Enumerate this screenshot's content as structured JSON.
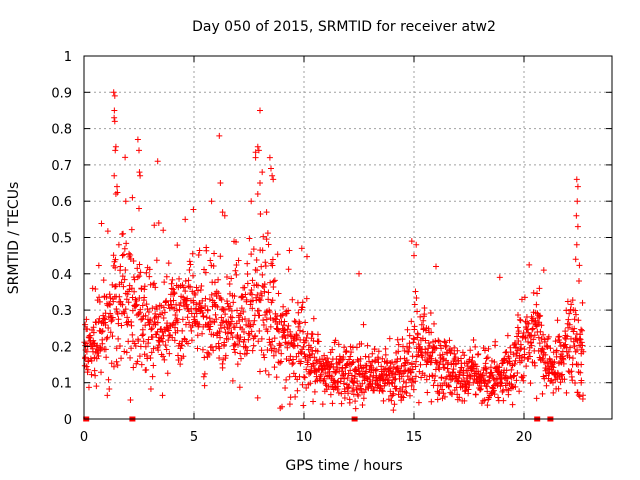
{
  "chart_data": {
    "type": "scatter",
    "title": "Day 050 of 2015, SRMTID for receiver atw2",
    "xlabel": "GPS time / hours",
    "ylabel": "SRMTID / TECUs",
    "xlim": [
      0,
      24
    ],
    "ylim": [
      0,
      1
    ],
    "xticks": [
      0,
      5,
      10,
      15,
      20
    ],
    "xtick_labels": [
      "0",
      "5",
      "10",
      "15",
      "20"
    ],
    "yticks": [
      0,
      0.1,
      0.2,
      0.3,
      0.4,
      0.5,
      0.6,
      0.7,
      0.8,
      0.9,
      1
    ],
    "ytick_labels": [
      "0",
      "0.1",
      "0.2",
      "0.3",
      "0.4",
      "0.5",
      "0.6",
      "0.7",
      "0.8",
      "0.9",
      "1"
    ],
    "grid": true,
    "marker": "+",
    "color": "#ff0000",
    "profile": {
      "x": [
        0.0,
        0.5,
        1.0,
        1.5,
        2.0,
        2.5,
        3.0,
        3.5,
        4.0,
        4.5,
        5.0,
        5.5,
        6.0,
        6.5,
        7.0,
        7.5,
        8.0,
        8.5,
        9.0,
        9.5,
        10.0,
        10.5,
        11.0,
        11.5,
        12.0,
        12.5,
        13.0,
        13.5,
        14.0,
        14.5,
        15.0,
        15.5,
        16.0,
        16.5,
        17.0,
        17.5,
        18.0,
        18.5,
        19.0,
        19.5,
        20.0,
        20.5,
        21.0,
        21.5,
        22.0,
        22.5
      ],
      "median": [
        0.22,
        0.2,
        0.25,
        0.3,
        0.33,
        0.27,
        0.24,
        0.25,
        0.27,
        0.28,
        0.29,
        0.27,
        0.26,
        0.25,
        0.24,
        0.26,
        0.3,
        0.3,
        0.22,
        0.2,
        0.19,
        0.14,
        0.12,
        0.12,
        0.12,
        0.13,
        0.12,
        0.12,
        0.11,
        0.12,
        0.17,
        0.19,
        0.15,
        0.14,
        0.13,
        0.12,
        0.11,
        0.11,
        0.12,
        0.13,
        0.2,
        0.24,
        0.15,
        0.15,
        0.2,
        0.2
      ],
      "spread": [
        0.06,
        0.07,
        0.1,
        0.14,
        0.13,
        0.1,
        0.1,
        0.09,
        0.09,
        0.1,
        0.09,
        0.09,
        0.09,
        0.08,
        0.08,
        0.12,
        0.15,
        0.14,
        0.09,
        0.09,
        0.08,
        0.06,
        0.05,
        0.05,
        0.05,
        0.06,
        0.05,
        0.05,
        0.05,
        0.06,
        0.09,
        0.08,
        0.06,
        0.05,
        0.05,
        0.05,
        0.04,
        0.04,
        0.05,
        0.06,
        0.08,
        0.09,
        0.06,
        0.06,
        0.1,
        0.12
      ]
    },
    "peaks": [
      {
        "x": 0.05,
        "y": 0.26
      },
      {
        "x": 1.35,
        "y": 0.9
      },
      {
        "x": 1.4,
        "y": 0.89
      },
      {
        "x": 1.38,
        "y": 0.85
      },
      {
        "x": 1.37,
        "y": 0.83
      },
      {
        "x": 1.4,
        "y": 0.82
      },
      {
        "x": 1.45,
        "y": 0.75
      },
      {
        "x": 1.42,
        "y": 0.74
      },
      {
        "x": 1.5,
        "y": 0.64
      },
      {
        "x": 1.45,
        "y": 0.62
      },
      {
        "x": 1.9,
        "y": 0.6
      },
      {
        "x": 2.2,
        "y": 0.61
      },
      {
        "x": 2.45,
        "y": 0.77
      },
      {
        "x": 2.5,
        "y": 0.74
      },
      {
        "x": 2.52,
        "y": 0.68
      },
      {
        "x": 2.55,
        "y": 0.67
      },
      {
        "x": 2.5,
        "y": 0.58
      },
      {
        "x": 3.35,
        "y": 0.71
      },
      {
        "x": 3.4,
        "y": 0.54
      },
      {
        "x": 3.6,
        "y": 0.52
      },
      {
        "x": 4.6,
        "y": 0.55
      },
      {
        "x": 5.8,
        "y": 0.6
      },
      {
        "x": 6.15,
        "y": 0.78
      },
      {
        "x": 6.2,
        "y": 0.65
      },
      {
        "x": 6.3,
        "y": 0.57
      },
      {
        "x": 6.4,
        "y": 0.56
      },
      {
        "x": 7.6,
        "y": 0.6
      },
      {
        "x": 7.9,
        "y": 0.75
      },
      {
        "x": 7.95,
        "y": 0.74
      },
      {
        "x": 8.0,
        "y": 0.85
      },
      {
        "x": 7.8,
        "y": 0.72
      },
      {
        "x": 8.1,
        "y": 0.68
      },
      {
        "x": 8.45,
        "y": 0.72
      },
      {
        "x": 8.5,
        "y": 0.69
      },
      {
        "x": 8.55,
        "y": 0.67
      },
      {
        "x": 8.6,
        "y": 0.66
      },
      {
        "x": 8.0,
        "y": 0.65
      },
      {
        "x": 7.9,
        "y": 0.62
      },
      {
        "x": 8.3,
        "y": 0.57
      },
      {
        "x": 9.9,
        "y": 0.47
      },
      {
        "x": 12.5,
        "y": 0.4
      },
      {
        "x": 14.9,
        "y": 0.49
      },
      {
        "x": 15.1,
        "y": 0.48
      },
      {
        "x": 15.0,
        "y": 0.45
      },
      {
        "x": 16.0,
        "y": 0.42
      },
      {
        "x": 18.9,
        "y": 0.39
      },
      {
        "x": 20.9,
        "y": 0.41
      },
      {
        "x": 20.7,
        "y": 0.36
      },
      {
        "x": 22.4,
        "y": 0.66
      },
      {
        "x": 22.45,
        "y": 0.64
      },
      {
        "x": 22.42,
        "y": 0.6
      },
      {
        "x": 22.38,
        "y": 0.56
      },
      {
        "x": 22.45,
        "y": 0.53
      },
      {
        "x": 22.4,
        "y": 0.48
      },
      {
        "x": 22.35,
        "y": 0.44
      },
      {
        "x": 22.5,
        "y": 0.38
      },
      {
        "x": 22.6,
        "y": 0.18
      },
      {
        "x": 22.6,
        "y": 0.15
      },
      {
        "x": 22.6,
        "y": 0.1
      }
    ],
    "zero_values": [
      {
        "x": 0.1,
        "y": 0.0
      },
      {
        "x": 2.2,
        "y": 0.0
      },
      {
        "x": 12.3,
        "y": 0.0
      },
      {
        "x": 20.6,
        "y": 0.0
      },
      {
        "x": 21.2,
        "y": 0.0
      }
    ]
  }
}
